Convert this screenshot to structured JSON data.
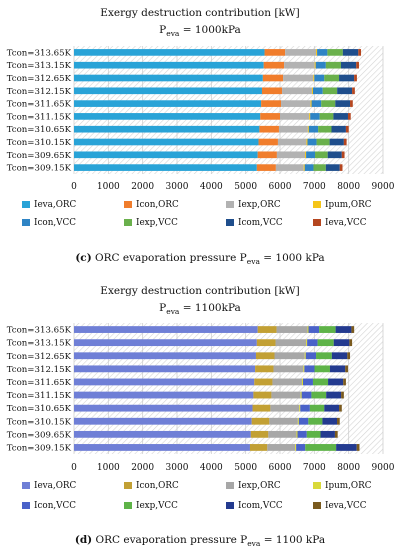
{
  "chart_data": [
    {
      "type": "bar",
      "orientation": "horizontal",
      "stacked": true,
      "title": "Exergy destruction contribution [kW]",
      "subtitle": {
        "main": "P",
        "sub": "eva",
        "rest": " = 1000kPa"
      },
      "caption": {
        "tag": "(c)",
        "pre": " ORC evaporation pressure P",
        "sub": "eva",
        "post": " = 1000 kPa"
      },
      "categories": [
        "Tcon=313.65K",
        "Tcon=313.15K",
        "Tcon=312.65K",
        "Tcon=312.15K",
        "Tcon=311.65K",
        "Tcon=311.15K",
        "Tcon=310.65K",
        "Tcon=310.15K",
        "Tcon=309.65K",
        "Tcon=309.15K"
      ],
      "xlim": [
        0,
        9000
      ],
      "xticks": [
        "0",
        "1000",
        "2000",
        "3000",
        "4000",
        "5000",
        "6000",
        "7000",
        "8000",
        "9000"
      ],
      "legend_position": "bottom",
      "grid": true,
      "series": [
        {
          "name": "Ieva,ORC",
          "color": "#29a3d7",
          "values": [
            5550,
            5525,
            5500,
            5475,
            5450,
            5425,
            5400,
            5375,
            5350,
            5325
          ]
        },
        {
          "name": "Icon,ORC",
          "color": "#f07d2c",
          "values": [
            600,
            595,
            590,
            585,
            580,
            575,
            570,
            565,
            560,
            555
          ]
        },
        {
          "name": "Iexp,ORC",
          "color": "#b2b2b2",
          "values": [
            900,
            890,
            880,
            870,
            860,
            850,
            840,
            830,
            820,
            810
          ]
        },
        {
          "name": "Ipum,ORC",
          "color": "#f5c518",
          "values": [
            30,
            30,
            30,
            30,
            30,
            30,
            30,
            30,
            30,
            30
          ]
        },
        {
          "name": "Icon,VCC",
          "color": "#2e84c5",
          "values": [
            300,
            295,
            290,
            285,
            280,
            275,
            270,
            265,
            260,
            255
          ]
        },
        {
          "name": "Iexp,VCC",
          "color": "#6ab04c",
          "values": [
            450,
            440,
            430,
            420,
            410,
            400,
            390,
            380,
            370,
            360
          ]
        },
        {
          "name": "Icom,VCC",
          "color": "#1f4e8c",
          "values": [
            450,
            445,
            440,
            435,
            430,
            425,
            420,
            415,
            410,
            405
          ]
        },
        {
          "name": "Ieva,VCC",
          "color": "#b5461f",
          "values": [
            80,
            80,
            80,
            80,
            80,
            80,
            80,
            80,
            80,
            80
          ]
        }
      ]
    },
    {
      "type": "bar",
      "orientation": "horizontal",
      "stacked": true,
      "title": "Exergy destruction contribution [kW]",
      "subtitle": {
        "main": "P",
        "sub": "eva",
        "rest": " = 1100kPa"
      },
      "caption": {
        "tag": "(d)",
        "pre": " ORC evaporation pressure P",
        "sub": "eva",
        "post": " = 1100 kPa"
      },
      "categories": [
        "Tcon=313.65K",
        "Tcon=313.15K",
        "Tcon=312.65K",
        "Tcon=312.15K",
        "Tcon=311.65K",
        "Tcon=311.15K",
        "Tcon=310.65K",
        "Tcon=310.15K",
        "Tcon=309.65K",
        "Tcon=309.15K"
      ],
      "xlim": [
        0,
        9000
      ],
      "xticks": [
        "0",
        "1000",
        "2000",
        "3000",
        "4000",
        "5000",
        "6000",
        "7000",
        "8000",
        "9000"
      ],
      "legend_position": "bottom",
      "grid": true,
      "series": [
        {
          "name": "Ieva,ORC",
          "color": "#6f7fd6",
          "values": [
            5350,
            5325,
            5300,
            5275,
            5250,
            5225,
            5200,
            5175,
            5150,
            5125
          ]
        },
        {
          "name": "Icon,ORC",
          "color": "#c2a034",
          "values": [
            550,
            545,
            540,
            535,
            530,
            525,
            520,
            515,
            510,
            505
          ]
        },
        {
          "name": "Iexp,ORC",
          "color": "#a7a7a7",
          "values": [
            900,
            890,
            880,
            870,
            860,
            850,
            840,
            830,
            820,
            810
          ]
        },
        {
          "name": "Ipum,ORC",
          "color": "#d9d93a",
          "values": [
            30,
            30,
            30,
            30,
            30,
            30,
            30,
            30,
            30,
            30
          ]
        },
        {
          "name": "Icon,VCC",
          "color": "#4a62c9",
          "values": [
            310,
            305,
            300,
            295,
            290,
            285,
            280,
            275,
            270,
            265
          ]
        },
        {
          "name": "Iexp,VCC",
          "color": "#5eb348",
          "values": [
            480,
            470,
            460,
            450,
            440,
            430,
            420,
            410,
            400,
            900
          ]
        },
        {
          "name": "Icom,VCC",
          "color": "#233a8f",
          "values": [
            460,
            455,
            450,
            445,
            440,
            435,
            430,
            425,
            420,
            600
          ]
        },
        {
          "name": "Ieva,VCC",
          "color": "#7a5a1e",
          "values": [
            80,
            80,
            80,
            80,
            80,
            80,
            80,
            80,
            80,
            80
          ]
        }
      ]
    }
  ]
}
